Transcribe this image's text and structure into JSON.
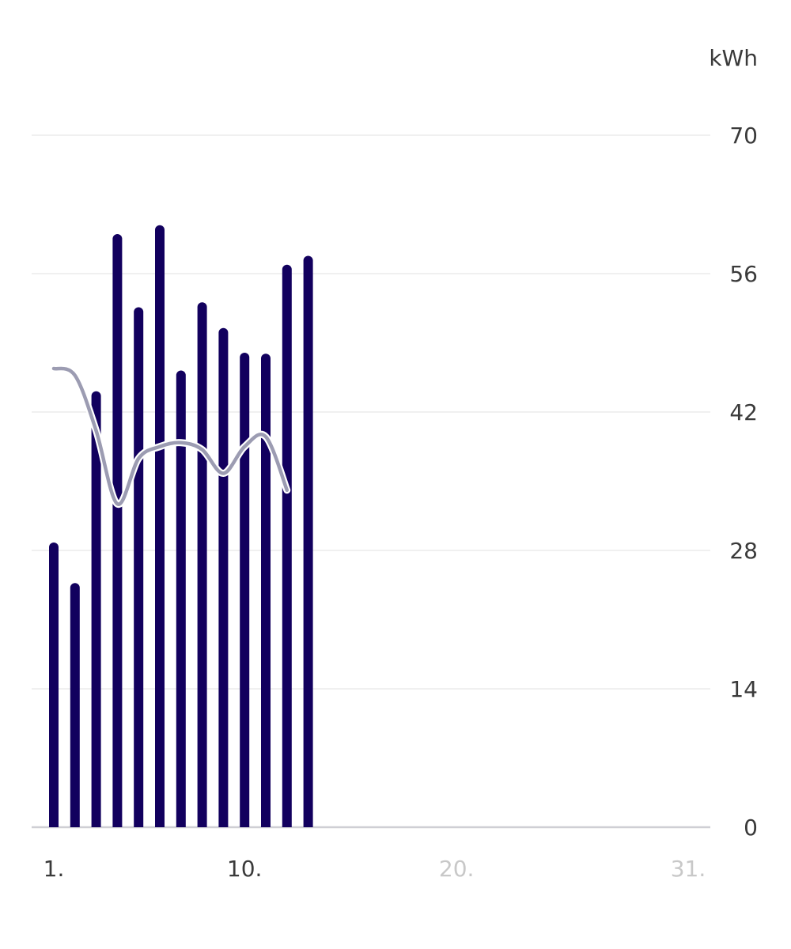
{
  "chart_data": {
    "type": "bar",
    "unit_label": "kWh",
    "ylim": [
      0,
      70
    ],
    "y_ticks": [
      "0",
      "14",
      "28",
      "42",
      "56",
      "70"
    ],
    "x_range": [
      1,
      31
    ],
    "x_ticks": [
      {
        "day": 1,
        "label": "1.",
        "active": true
      },
      {
        "day": 10,
        "label": "10.",
        "active": true
      },
      {
        "day": 20,
        "label": "20.",
        "active": false
      },
      {
        "day": 31,
        "label": "31.",
        "active": false
      }
    ],
    "grid": true,
    "series": [
      {
        "type": "bar",
        "x": [
          1,
          2,
          3,
          4,
          5,
          6,
          7,
          8,
          9,
          10,
          11,
          12,
          13
        ],
        "values": [
          28.8,
          24.7,
          44.1,
          60.0,
          52.6,
          60.9,
          46.2,
          53.1,
          50.5,
          48.0,
          47.9,
          56.9,
          57.8
        ]
      },
      {
        "type": "line",
        "x": [
          1,
          2,
          3,
          4,
          5,
          6,
          7,
          8,
          9,
          10,
          11,
          12
        ],
        "values": [
          46.4,
          45.7,
          40.1,
          32.7,
          37.3,
          38.5,
          38.9,
          38.2,
          35.8,
          38.5,
          39.5,
          34.1
        ]
      }
    ],
    "colors": {
      "bar": "#12005e",
      "line": "#9c9cb2",
      "grid": "#ececec",
      "axis": "#cfcfd4",
      "tick_active": "#3a3a3a",
      "tick_inactive": "#c8c8c8"
    }
  }
}
